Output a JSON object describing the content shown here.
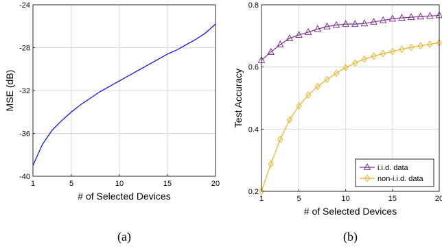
{
  "chart_data": [
    {
      "type": "line",
      "panel": "(a)",
      "xlabel": "# of Selected Devices",
      "ylabel": "MSE (dB)",
      "xlim": [
        1,
        20
      ],
      "ylim": [
        -40,
        -24
      ],
      "xticks": [
        1,
        5,
        10,
        15,
        20
      ],
      "yticks": [
        -40,
        -36,
        -32,
        -28,
        -24
      ],
      "grid": true,
      "legend": null,
      "series": [
        {
          "color": "#0000ff",
          "marker": "none",
          "x": [
            1,
            2,
            3,
            4,
            5,
            6,
            7,
            8,
            9,
            10,
            11,
            12,
            13,
            14,
            15,
            16,
            17,
            18,
            19,
            20
          ],
          "y": [
            -39.0,
            -37.0,
            -35.7,
            -34.8,
            -34.0,
            -33.3,
            -32.7,
            -32.1,
            -31.6,
            -31.1,
            -30.6,
            -30.1,
            -29.6,
            -29.1,
            -28.6,
            -28.2,
            -27.7,
            -27.2,
            -26.6,
            -25.8
          ]
        }
      ]
    },
    {
      "type": "line",
      "panel": "(b)",
      "xlabel": "# of Selected Devices",
      "ylabel": "Test Accuracy",
      "xlim": [
        1,
        20
      ],
      "ylim": [
        0.2,
        0.8
      ],
      "xticks": [
        1,
        5,
        10,
        15,
        20
      ],
      "yticks": [
        0.2,
        0.4,
        0.6,
        0.8
      ],
      "grid": true,
      "legend": "bottom-right",
      "series": [
        {
          "name": "i.i.d. data",
          "color": "#7e2f8e",
          "marker": "triangle",
          "x": [
            1,
            2,
            3,
            4,
            5,
            6,
            7,
            8,
            9,
            10,
            11,
            12,
            13,
            14,
            15,
            16,
            17,
            18,
            19,
            20
          ],
          "y": [
            0.622,
            0.648,
            0.672,
            0.692,
            0.703,
            0.712,
            0.722,
            0.73,
            0.735,
            0.738,
            0.738,
            0.74,
            0.745,
            0.75,
            0.755,
            0.758,
            0.76,
            0.762,
            0.764,
            0.766
          ]
        },
        {
          "name": "non-i.i.d. data",
          "color": "#edb120",
          "marker": "diamond",
          "x": [
            1,
            2,
            3,
            4,
            5,
            6,
            7,
            8,
            9,
            10,
            11,
            12,
            13,
            14,
            15,
            16,
            17,
            18,
            19,
            20
          ],
          "y": [
            0.2,
            0.288,
            0.367,
            0.43,
            0.475,
            0.51,
            0.537,
            0.56,
            0.58,
            0.598,
            0.613,
            0.625,
            0.635,
            0.643,
            0.65,
            0.657,
            0.663,
            0.668,
            0.673,
            0.678
          ]
        }
      ]
    }
  ]
}
